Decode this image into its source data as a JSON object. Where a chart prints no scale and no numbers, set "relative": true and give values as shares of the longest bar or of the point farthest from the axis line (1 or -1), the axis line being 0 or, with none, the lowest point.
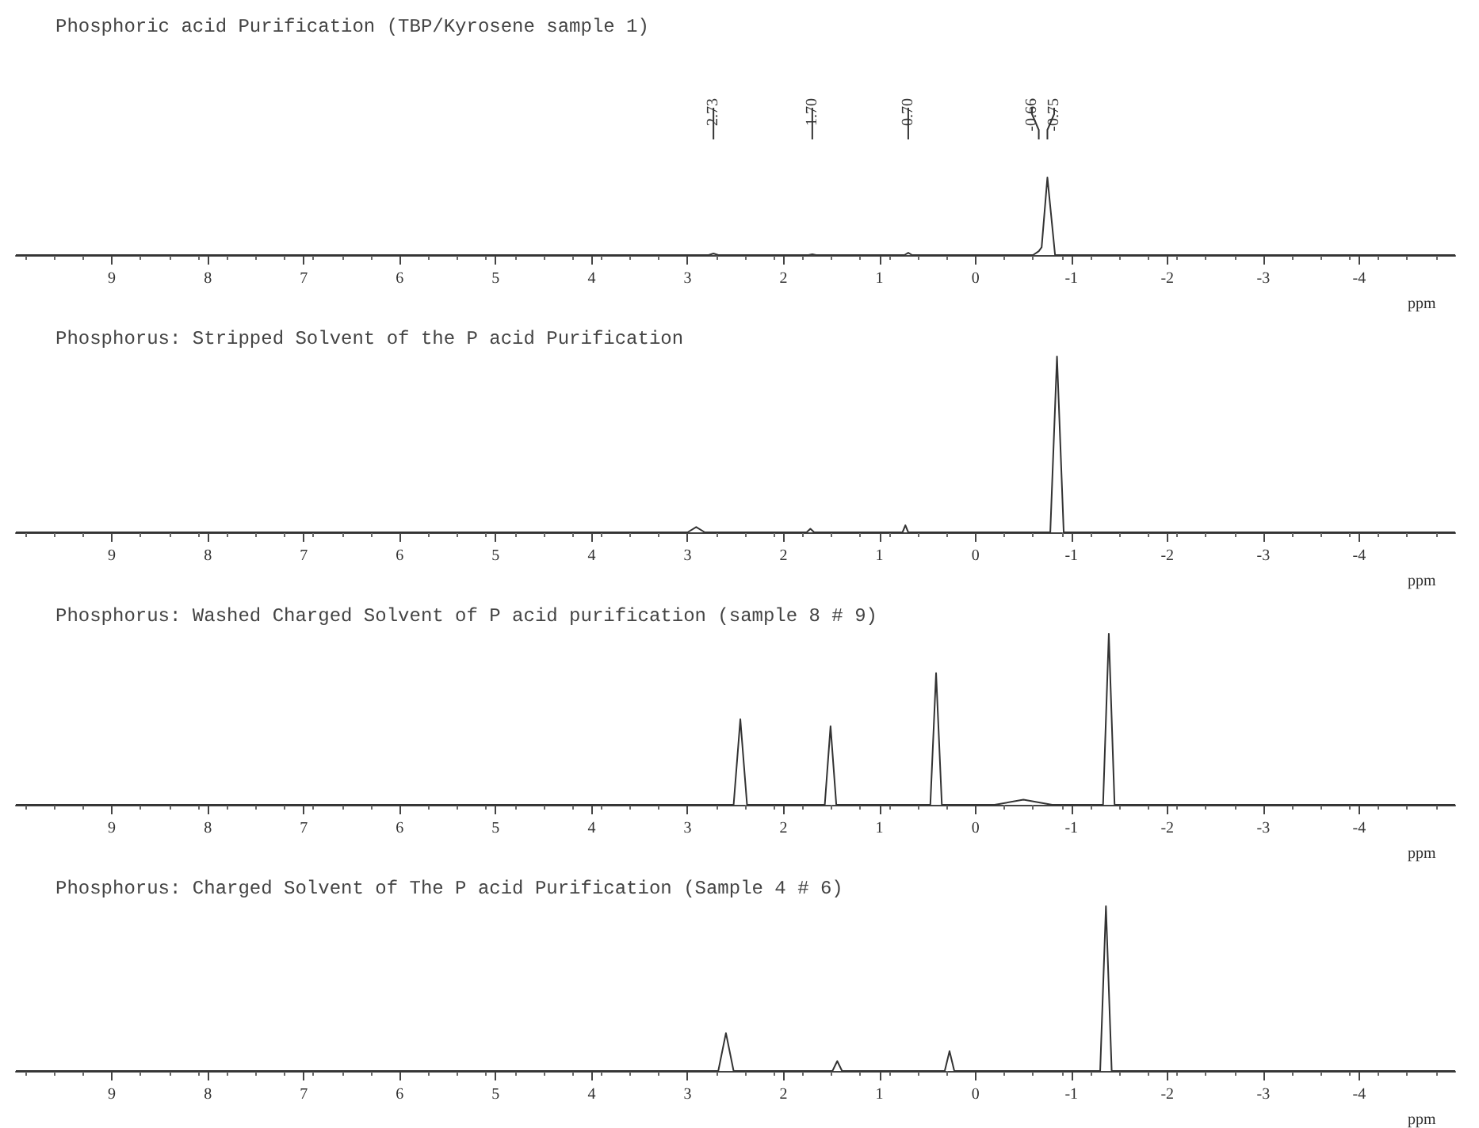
{
  "chart_data": [
    {
      "type": "line",
      "title": "Phosphoric acid Purification (TBP/Kyrosene sample 1)",
      "xlabel": "ppm",
      "relative": true,
      "marker": "none",
      "grid": false,
      "xlim": [
        10,
        -5
      ],
      "xticks": [
        9,
        8,
        7,
        6,
        5,
        4,
        3,
        2,
        1,
        0,
        -1,
        -2,
        -3,
        -4
      ],
      "x": [
        10,
        2.78,
        2.73,
        2.68,
        1.74,
        1.7,
        1.66,
        0.74,
        0.7,
        0.66,
        -0.6,
        -0.66,
        -0.69,
        -0.75,
        -0.83,
        -5
      ],
      "series": [
        {
          "color": "#333333",
          "values": [
            0,
            0,
            0.02,
            0,
            0,
            0.01,
            0,
            0,
            0.03,
            0,
            0,
            0.05,
            0.1,
            1,
            0,
            0
          ]
        }
      ],
      "ref_lines": [
        {
          "axis": "x",
          "value": 2.73,
          "label": "2.73"
        },
        {
          "axis": "x",
          "value": 1.7,
          "label": "1.70"
        },
        {
          "axis": "x",
          "value": 0.7,
          "label": "0.70"
        },
        {
          "axis": "x",
          "value": -0.66,
          "label": "-0.66"
        },
        {
          "axis": "x",
          "value": -0.75,
          "label": "-0.75"
        }
      ]
    },
    {
      "type": "line",
      "title": "Phosphorus: Stripped Solvent of the P acid Purification",
      "xlabel": "ppm",
      "relative": true,
      "marker": "none",
      "grid": false,
      "xlim": [
        10,
        -5
      ],
      "xticks": [
        9,
        8,
        7,
        6,
        5,
        4,
        3,
        2,
        1,
        0,
        -1,
        -2,
        -3,
        -4
      ],
      "x": [
        10,
        3.0,
        2.91,
        2.82,
        1.76,
        1.72,
        1.68,
        0.76,
        0.73,
        0.7,
        -0.78,
        -0.85,
        -0.92,
        -5
      ],
      "series": [
        {
          "color": "#333333",
          "values": [
            0,
            0,
            0.03,
            0,
            0,
            0.02,
            0,
            0,
            0.04,
            0,
            0,
            1,
            0,
            0
          ]
        }
      ]
    },
    {
      "type": "line",
      "title": "Phosphorus: Washed Charged Solvent of P acid purification (sample 8 # 9)",
      "xlabel": "ppm",
      "relative": true,
      "marker": "none",
      "grid": false,
      "xlim": [
        10,
        -5
      ],
      "xticks": [
        9,
        8,
        7,
        6,
        5,
        4,
        3,
        2,
        1,
        0,
        -1,
        -2,
        -3,
        -4
      ],
      "x": [
        10,
        2.52,
        2.45,
        2.38,
        1.57,
        1.51,
        1.45,
        0.47,
        0.41,
        0.35,
        -0.2,
        -0.5,
        -0.8,
        -1.33,
        -1.39,
        -1.45,
        -5
      ],
      "series": [
        {
          "color": "#333333",
          "values": [
            0,
            0,
            0.5,
            0,
            0,
            0.46,
            0,
            0,
            0.77,
            0,
            0,
            0.03,
            0,
            0,
            1,
            0,
            0
          ]
        }
      ]
    },
    {
      "type": "line",
      "title": "Phosphorus: Charged Solvent of The P acid Purification (Sample 4 # 6)",
      "xlabel": "ppm",
      "relative": true,
      "marker": "none",
      "grid": false,
      "xlim": [
        10,
        -5
      ],
      "xticks": [
        9,
        8,
        7,
        6,
        5,
        4,
        3,
        2,
        1,
        0,
        -1,
        -2,
        -3,
        -4
      ],
      "x": [
        10,
        2.68,
        2.6,
        2.52,
        1.49,
        1.44,
        1.39,
        0.32,
        0.27,
        0.22,
        -1.3,
        -1.36,
        -1.42,
        -5
      ],
      "series": [
        {
          "color": "#333333",
          "values": [
            0,
            0,
            0.23,
            0,
            0,
            0.06,
            0,
            0,
            0.12,
            0,
            0,
            1,
            0,
            0
          ]
        }
      ]
    }
  ]
}
